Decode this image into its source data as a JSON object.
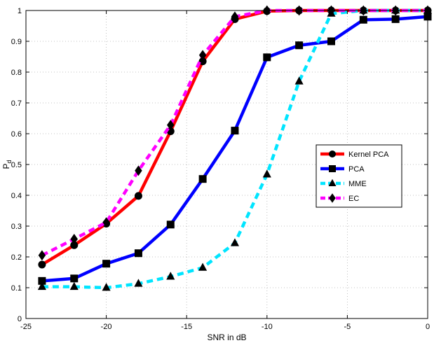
{
  "chart_data": {
    "type": "line",
    "xlabel": "SNR in dB",
    "ylabel": "P",
    "ylabel_subscript": "d",
    "xlim": [
      -25,
      0
    ],
    "ylim": [
      0,
      1
    ],
    "xticks": [
      -25,
      -20,
      -15,
      -10,
      -5,
      0
    ],
    "yticks": [
      0,
      0.1,
      0.2,
      0.3,
      0.4,
      0.5,
      0.6,
      0.7,
      0.8,
      0.9,
      1
    ],
    "grid": true,
    "legend_position": "right",
    "series": [
      {
        "name": "Kernel PCA",
        "color": "#ff0000",
        "line_style": "solid",
        "marker": "circle",
        "x": [
          -24,
          -22,
          -20,
          -18,
          -16,
          -14,
          -12,
          -10,
          -8,
          -6,
          -4,
          -2,
          0
        ],
        "y": [
          0.175,
          0.238,
          0.308,
          0.398,
          0.608,
          0.835,
          0.972,
          0.998,
          1.0,
          1.0,
          1.0,
          1.0,
          1.0
        ]
      },
      {
        "name": "PCA",
        "color": "#0000ff",
        "line_style": "solid",
        "marker": "square",
        "x": [
          -24,
          -22,
          -20,
          -18,
          -16,
          -14,
          -12,
          -10,
          -8,
          -6,
          -4,
          -2,
          0
        ],
        "y": [
          0.122,
          0.13,
          0.178,
          0.212,
          0.305,
          0.453,
          0.61,
          0.848,
          0.887,
          0.9,
          0.97,
          0.972,
          0.98
        ]
      },
      {
        "name": "MME",
        "color": "#00e5ff",
        "line_style": "dashed",
        "marker": "triangle",
        "x": [
          -24,
          -22,
          -20,
          -18,
          -16,
          -14,
          -12,
          -10,
          -8,
          -6,
          -4,
          -2,
          0
        ],
        "y": [
          0.103,
          0.103,
          0.1,
          0.113,
          0.136,
          0.165,
          0.245,
          0.468,
          0.77,
          0.99,
          1.0,
          1.0,
          1.0
        ]
      },
      {
        "name": "EC",
        "color": "#ff00ff",
        "line_style": "dashed",
        "marker": "diamond",
        "x": [
          -24,
          -22,
          -20,
          -18,
          -16,
          -14,
          -12,
          -10,
          -8,
          -6,
          -4,
          -2,
          0
        ],
        "y": [
          0.205,
          0.258,
          0.312,
          0.48,
          0.628,
          0.855,
          0.98,
          1.0,
          1.0,
          1.0,
          1.0,
          1.0,
          1.0
        ]
      }
    ]
  }
}
